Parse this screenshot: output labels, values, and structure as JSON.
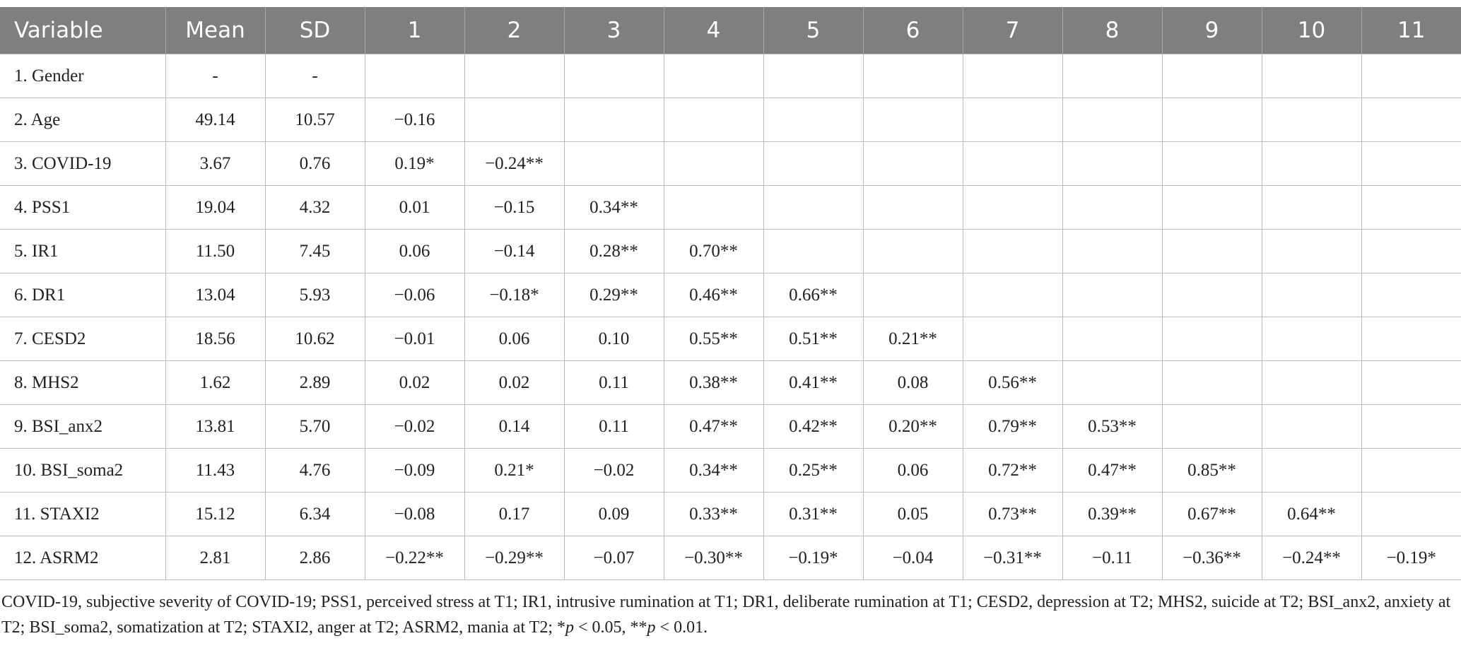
{
  "table": {
    "columns": [
      "Variable",
      "Mean",
      "SD",
      "1",
      "2",
      "3",
      "4",
      "5",
      "6",
      "7",
      "8",
      "9",
      "10",
      "11"
    ],
    "rows": [
      {
        "variable": "1. Gender",
        "mean": "-",
        "sd": "-",
        "r": []
      },
      {
        "variable": "2. Age",
        "mean": "49.14",
        "sd": "10.57",
        "r": [
          "−0.16"
        ]
      },
      {
        "variable": "3. COVID-19",
        "mean": "3.67",
        "sd": "0.76",
        "r": [
          "0.19*",
          "−0.24**"
        ]
      },
      {
        "variable": "4. PSS1",
        "mean": "19.04",
        "sd": "4.32",
        "r": [
          "0.01",
          "−0.15",
          "0.34**"
        ]
      },
      {
        "variable": "5. IR1",
        "mean": "11.50",
        "sd": "7.45",
        "r": [
          "0.06",
          "−0.14",
          "0.28**",
          "0.70**"
        ]
      },
      {
        "variable": "6. DR1",
        "mean": "13.04",
        "sd": "5.93",
        "r": [
          "−0.06",
          "−0.18*",
          "0.29**",
          "0.46**",
          "0.66**"
        ]
      },
      {
        "variable": "7. CESD2",
        "mean": "18.56",
        "sd": "10.62",
        "r": [
          "−0.01",
          "0.06",
          "0.10",
          "0.55**",
          "0.51**",
          "0.21**"
        ]
      },
      {
        "variable": "8. MHS2",
        "mean": "1.62",
        "sd": "2.89",
        "r": [
          "0.02",
          "0.02",
          "0.11",
          "0.38**",
          "0.41**",
          "0.08",
          "0.56**"
        ]
      },
      {
        "variable": "9. BSI_anx2",
        "mean": "13.81",
        "sd": "5.70",
        "r": [
          "−0.02",
          "0.14",
          "0.11",
          "0.47**",
          "0.42**",
          "0.20**",
          "0.79**",
          "0.53**"
        ]
      },
      {
        "variable": "10. BSI_soma2",
        "mean": "11.43",
        "sd": "4.76",
        "r": [
          "−0.09",
          "0.21*",
          "−0.02",
          "0.34**",
          "0.25**",
          "0.06",
          "0.72**",
          "0.47**",
          "0.85**"
        ]
      },
      {
        "variable": "11. STAXI2",
        "mean": "15.12",
        "sd": "6.34",
        "r": [
          "−0.08",
          "0.17",
          "0.09",
          "0.33**",
          "0.31**",
          "0.05",
          "0.73**",
          "0.39**",
          "0.67**",
          "0.64**"
        ]
      },
      {
        "variable": "12. ASRM2",
        "mean": "2.81",
        "sd": "2.86",
        "r": [
          "−0.22**",
          "−0.29**",
          "−0.07",
          "−0.30**",
          "−0.19*",
          "−0.04",
          "−0.31**",
          "−0.11",
          "−0.36**",
          "−0.24**",
          "−0.19*"
        ]
      }
    ]
  },
  "footnote": [
    {
      "text": "COVID-19, subjective severity of COVID-19; PSS1, perceived stress at T1; IR1, intrusive rumination at T1; DR1, deliberate rumination at T1; CESD2, depression at T2; MHS2, suicide at T2; BSI_anx2, anxiety at T2; BSI_soma2, somatization at T2; STAXI2, anger at T2; ASRM2, mania at T2; *",
      "italic": false
    },
    {
      "text": "p",
      "italic": true
    },
    {
      "text": " < 0.05, **",
      "italic": false
    },
    {
      "text": "p",
      "italic": true
    },
    {
      "text": " < 0.01.",
      "italic": false
    }
  ]
}
